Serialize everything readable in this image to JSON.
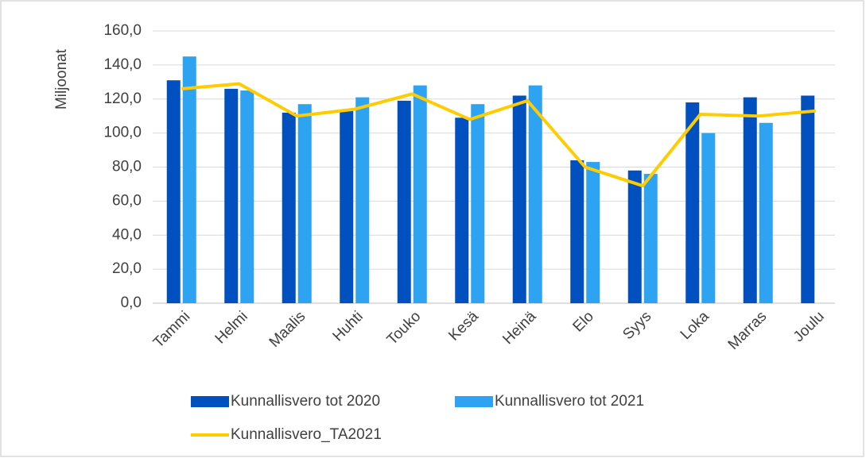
{
  "chart_data": {
    "type": "bar",
    "y_label": "Miljoonat",
    "categories": [
      "Tammi",
      "Helmi",
      "Maalis",
      "Huhti",
      "Touko",
      "Kesä",
      "Heinä",
      "Elo",
      "Syys",
      "Loka",
      "Marras",
      "Joulu"
    ],
    "series": [
      {
        "name": "Kunnallisvero tot 2020",
        "color": "#0050c0",
        "values": [
          131,
          126,
          112,
          113,
          119,
          109,
          122,
          84,
          78,
          118,
          121,
          122
        ]
      },
      {
        "name": "Kunnallisvero tot 2021",
        "color": "#2ea3f2",
        "values": [
          145,
          125,
          117,
          121,
          128,
          117,
          128,
          83,
          76,
          100,
          106,
          null
        ]
      },
      {
        "name": "Kunnallisvero_TA2021",
        "color": "#ffcc00",
        "type": "line",
        "values": [
          126,
          129,
          110,
          114,
          123,
          108,
          119,
          80,
          69,
          111,
          110,
          113
        ]
      }
    ],
    "ylim": [
      0,
      160
    ],
    "yticks": [
      {
        "value": 0,
        "label": "0,0"
      },
      {
        "value": 20,
        "label": "20,0"
      },
      {
        "value": 40,
        "label": "40,0"
      },
      {
        "value": 60,
        "label": "60,0"
      },
      {
        "value": 80,
        "label": "80,0"
      },
      {
        "value": 100,
        "label": "100,0"
      },
      {
        "value": 120,
        "label": "120,0"
      },
      {
        "value": 140,
        "label": "140,0"
      },
      {
        "value": 160,
        "label": "160,0"
      }
    ],
    "grid": true,
    "legend": "bottom"
  }
}
